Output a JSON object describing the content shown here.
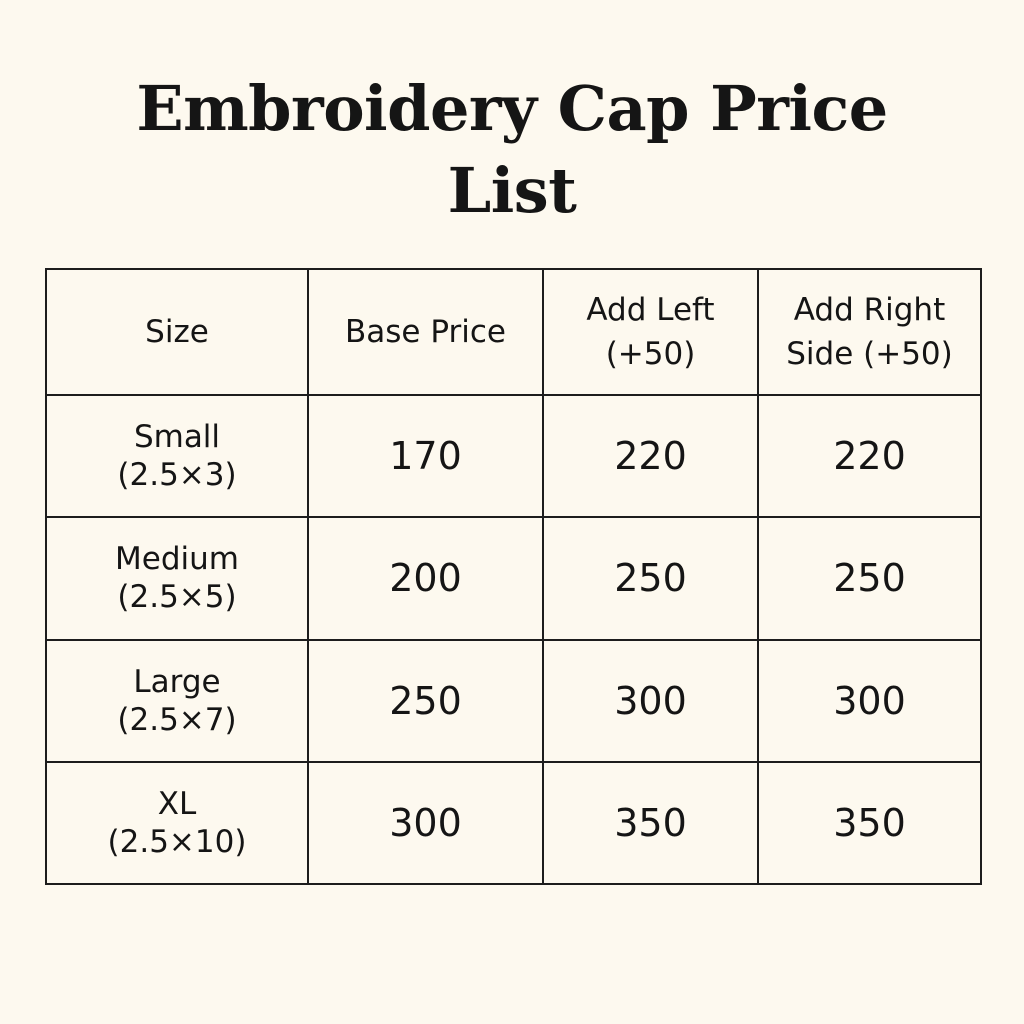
{
  "title": {
    "line1": "Embroidery Cap Price",
    "line2": "List"
  },
  "table": {
    "headers": [
      {
        "line1": "Size",
        "line2": ""
      },
      {
        "line1": "Base Price",
        "line2": ""
      },
      {
        "line1": "Add Left",
        "line2": "(+50)"
      },
      {
        "line1": "Add Right",
        "line2": "Side (+50)"
      }
    ],
    "rows": [
      {
        "size": "Small",
        "dim": "(2.5×3)",
        "base": "170",
        "left": "220",
        "right": "220"
      },
      {
        "size": "Medium",
        "dim": "(2.5×5)",
        "base": "200",
        "left": "250",
        "right": "250"
      },
      {
        "size": "Large",
        "dim": "(2.5×7)",
        "base": "250",
        "left": "300",
        "right": "300"
      },
      {
        "size": "XL",
        "dim": "(2.5×10)",
        "base": "300",
        "left": "350",
        "right": "350"
      }
    ]
  }
}
